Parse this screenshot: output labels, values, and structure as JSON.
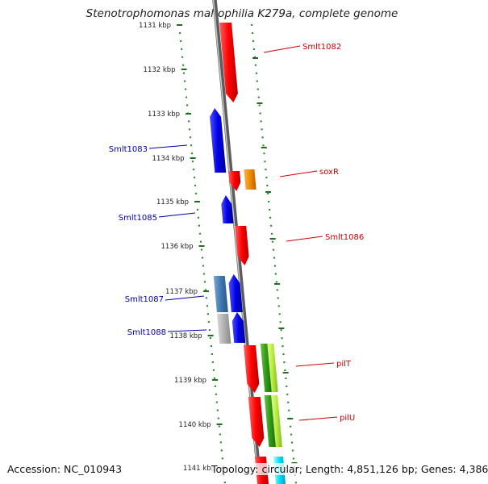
{
  "title": "Stenotrophomonas maltophilia K279a, complete genome",
  "footer": {
    "accession": "Accession: NC_010943",
    "summary": "Topology: circular; Length: 4,851,126 bp; Genes: 4,386"
  },
  "colors": {
    "forward_gene": "#e00000",
    "reverse_gene": "#0000dd",
    "pale_blue_gene": "#4a7fb5",
    "grey_gene": "#b0b0b0",
    "orange_gene": "#f08a00",
    "green_gene": "#3aa020",
    "yellowgreen_gene": "#b8ea40",
    "cyan_gene": "#00e0ff",
    "backbone": "#8a8a8a",
    "dotted_track": "#2a8a2a",
    "forward_label": "#cc0000",
    "reverse_label": "#0000aa"
  },
  "scale": {
    "unit": "kbp",
    "ticks": [
      {
        "label": "1131 kbp"
      },
      {
        "label": "1132 kbp"
      },
      {
        "label": "1133 kbp"
      },
      {
        "label": "1134 kbp"
      },
      {
        "label": "1135 kbp"
      },
      {
        "label": "1136 kbp"
      },
      {
        "label": "1137 kbp"
      },
      {
        "label": "1138 kbp"
      },
      {
        "label": "1139 kbp"
      },
      {
        "label": "1140 kbp"
      },
      {
        "label": "1141 kbp"
      }
    ]
  },
  "gene_labels": [
    {
      "text": "Smlt1082",
      "strand": "forward"
    },
    {
      "text": "Smlt1083",
      "strand": "reverse"
    },
    {
      "text": "soxR",
      "strand": "forward"
    },
    {
      "text": "Smlt1085",
      "strand": "reverse"
    },
    {
      "text": "Smlt1086",
      "strand": "forward"
    },
    {
      "text": "Smlt1087",
      "strand": "reverse"
    },
    {
      "text": "Smlt1088",
      "strand": "reverse"
    },
    {
      "text": "pilT",
      "strand": "forward"
    },
    {
      "text": "pilU",
      "strand": "forward"
    }
  ]
}
